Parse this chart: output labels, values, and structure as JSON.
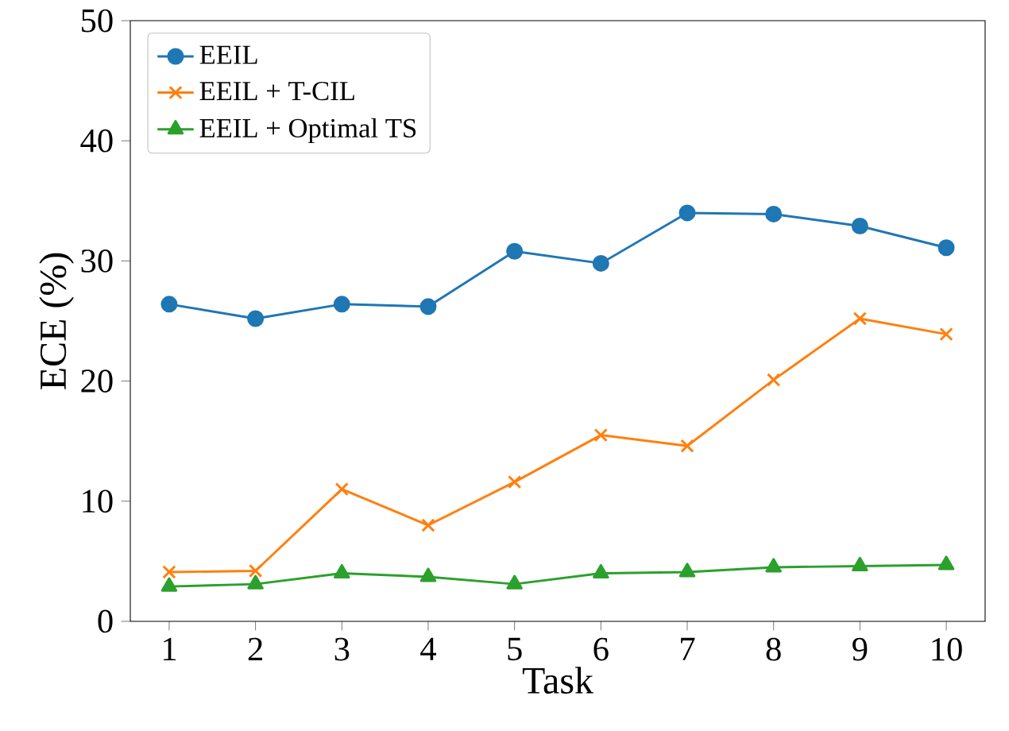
{
  "chart_data": {
    "type": "line",
    "xlabel": "Task",
    "ylabel": "ECE (%)",
    "x": [
      1,
      2,
      3,
      4,
      5,
      6,
      7,
      8,
      9,
      10
    ],
    "xlim": [
      0.55,
      10.45
    ],
    "xticks": [
      1,
      2,
      3,
      4,
      5,
      6,
      7,
      8,
      9,
      10
    ],
    "ylim": [
      0,
      50
    ],
    "yticks": [
      0,
      10,
      20,
      30,
      40,
      50
    ],
    "legend": "top left",
    "grid": false,
    "line_style": "solid",
    "series": [
      {
        "name": "EEIL",
        "color": "#1f77b4",
        "marker": "circle",
        "values": [
          26.4,
          25.2,
          26.4,
          26.2,
          30.8,
          29.8,
          34.0,
          33.9,
          32.9,
          31.1
        ]
      },
      {
        "name": "EEIL + T-CIL",
        "color": "#ff7f0e",
        "marker": "cross",
        "values": [
          4.1,
          4.2,
          11.0,
          8.0,
          11.6,
          15.5,
          14.6,
          20.1,
          25.2,
          23.9
        ]
      },
      {
        "name": "EEIL + Optimal TS",
        "color": "#2ca02c",
        "marker": "triangle",
        "values": [
          2.9,
          3.1,
          4.0,
          3.7,
          3.1,
          4.0,
          4.1,
          4.5,
          4.6,
          4.7
        ]
      }
    ]
  }
}
